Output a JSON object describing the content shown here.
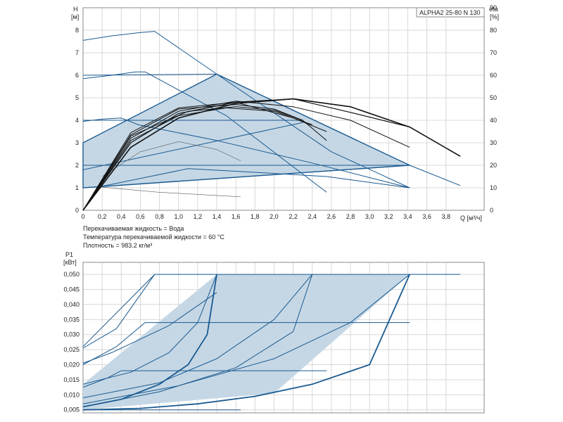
{
  "colors": {
    "region_fill": "#c5d7e5",
    "region_stroke": "#1a5a90",
    "curve_black": "#111111",
    "grid": "#d8d8d8"
  },
  "info": {
    "model": "ALPHA2 25-80 N 130",
    "liquid": "Перекачиваемая жидкость = Вода",
    "temperature": "Температура перекачиваемой жидкости = 60 °C",
    "density": "Плотность = 983.2 кг/м³"
  },
  "chart_data": [
    {
      "type": "line",
      "name": "head",
      "ylabel": "H",
      "ylabel_unit": "[м]",
      "y2label": "eta",
      "y2label_unit": "[%]",
      "xlabel": "Q [м³/ч]",
      "xlim": [
        0,
        4.2
      ],
      "ylim": [
        0,
        9
      ],
      "y2lim": [
        0,
        90
      ],
      "grid": true,
      "x_ticks": [
        "0",
        "0,2",
        "0,4",
        "0,6",
        "0,8",
        "1,0",
        "1,2",
        "1,4",
        "1,6",
        "1,8",
        "2,0",
        "2,2",
        "2,4",
        "2,6",
        "2,8",
        "3,0",
        "3,2",
        "3,4",
        "3,6",
        "3,8"
      ],
      "y_ticks": [
        "0",
        "1",
        "2",
        "3",
        "4",
        "5",
        "6",
        "7",
        "8"
      ],
      "y2_ticks": [
        "0",
        "10",
        "20",
        "30",
        "40",
        "50",
        "60",
        "70",
        "80",
        "90"
      ],
      "region": [
        [
          0,
          1.0
        ],
        [
          0,
          3.0
        ],
        [
          1.4,
          6.05
        ],
        [
          3.42,
          2.0
        ],
        [
          0.18,
          1.05
        ]
      ],
      "curves": [
        {
          "color": "blue",
          "width": 1,
          "points": [
            [
              0,
              7.55
            ],
            [
              0.3,
              7.75
            ],
            [
              0.6,
              7.9
            ],
            [
              0.75,
              7.95
            ],
            [
              1.4,
              6.05
            ],
            [
              2.6,
              2.6
            ],
            [
              3.42,
              1.0
            ]
          ]
        },
        {
          "color": "blue",
          "width": 1,
          "points": [
            [
              0,
              5.85
            ],
            [
              0.3,
              6.0
            ],
            [
              0.55,
              6.15
            ],
            [
              0.65,
              6.15
            ],
            [
              1.5,
              4.2
            ],
            [
              2.55,
              0.8
            ]
          ]
        },
        {
          "color": "blue",
          "width": 1,
          "points": [
            [
              0,
              3.95
            ],
            [
              0.2,
              4.05
            ],
            [
              0.4,
              4.1
            ],
            [
              0.58,
              3.8
            ],
            [
              1.4,
              3.1
            ],
            [
              2.4,
              2.1
            ],
            [
              3.42,
              1.0
            ]
          ]
        },
        {
          "color": "blue",
          "width": 1,
          "points": [
            [
              0,
              6.0
            ],
            [
              1.4,
              6.05
            ]
          ]
        },
        {
          "color": "blue",
          "width": 1,
          "points": [
            [
              0,
              4.0
            ],
            [
              2.3,
              4.0
            ]
          ]
        },
        {
          "color": "blue",
          "width": 1,
          "points": [
            [
              0,
              1.8
            ],
            [
              2.3,
              3.9
            ]
          ]
        },
        {
          "color": "blue",
          "width": 1,
          "points": [
            [
              0,
              2.0
            ],
            [
              3.42,
              2.0
            ]
          ]
        },
        {
          "color": "blue",
          "width": 1,
          "points": [
            [
              0,
              1.0
            ],
            [
              3.42,
              2.0
            ],
            [
              3.95,
              1.1
            ]
          ]
        },
        {
          "color": "blue",
          "width": 1,
          "points": [
            [
              0.18,
              1.05
            ],
            [
              1.1,
              1.85
            ],
            [
              1.75,
              1.7
            ],
            [
              2.55,
              1.5
            ],
            [
              3.42,
              1.0
            ]
          ]
        },
        {
          "color": "thin",
          "width": 0.6,
          "points": [
            [
              0.15,
              1.05
            ],
            [
              0.8,
              0.8
            ],
            [
              1.65,
              0.6
            ]
          ]
        },
        {
          "color": "thin",
          "width": 0.6,
          "points": [
            [
              0.2,
              1.5
            ],
            [
              0.6,
              2.6
            ],
            [
              1.0,
              3.05
            ],
            [
              1.4,
              2.7
            ],
            [
              1.65,
              2.2
            ]
          ]
        },
        {
          "color": "black",
          "width": 1.6,
          "points": [
            [
              0,
              0
            ],
            [
              0.5,
              2.8
            ],
            [
              1.0,
              4.1
            ],
            [
              1.6,
              4.75
            ],
            [
              2.2,
              4.95
            ],
            [
              2.8,
              4.6
            ],
            [
              3.42,
              3.7
            ],
            [
              3.95,
              2.4
            ]
          ]
        },
        {
          "color": "black",
          "width": 1.2,
          "points": [
            [
              0,
              0
            ],
            [
              0.5,
              3.0
            ],
            [
              1.0,
              4.3
            ],
            [
              1.6,
              4.8
            ],
            [
              2.2,
              4.95
            ],
            [
              2.8,
              4.35
            ],
            [
              3.42,
              3.7
            ]
          ]
        },
        {
          "color": "black",
          "width": 1.0,
          "points": [
            [
              0,
              0
            ],
            [
              0.5,
              3.2
            ],
            [
              1.0,
              4.4
            ],
            [
              1.6,
              4.85
            ],
            [
              2.2,
              4.6
            ],
            [
              2.8,
              4.0
            ],
            [
              3.42,
              2.8
            ]
          ]
        },
        {
          "color": "black",
          "width": 1.0,
          "points": [
            [
              0,
              0
            ],
            [
              0.5,
              3.35
            ],
            [
              1.0,
              4.5
            ],
            [
              1.6,
              4.7
            ],
            [
              2.0,
              4.5
            ],
            [
              2.3,
              4.0
            ],
            [
              2.55,
              3.1
            ]
          ]
        },
        {
          "color": "black",
          "width": 1.0,
          "points": [
            [
              0,
              0
            ],
            [
              0.5,
              3.45
            ],
            [
              1.0,
              4.55
            ],
            [
              1.6,
              4.8
            ],
            [
              2.2,
              4.1
            ],
            [
              2.55,
              3.5
            ]
          ]
        },
        {
          "color": "black",
          "width": 1.0,
          "points": [
            [
              0,
              0
            ],
            [
              0.5,
              3.1
            ],
            [
              1.0,
              4.2
            ],
            [
              1.5,
              4.55
            ],
            [
              2.0,
              4.4
            ],
            [
              2.4,
              3.8
            ]
          ]
        },
        {
          "color": "black",
          "width": 1.0,
          "points": [
            [
              0,
              0
            ],
            [
              0.5,
              3.3
            ],
            [
              1.1,
              4.4
            ],
            [
              1.6,
              4.6
            ],
            [
              2.0,
              4.45
            ],
            [
              2.3,
              4.0
            ]
          ]
        }
      ]
    },
    {
      "type": "line",
      "name": "power",
      "ylabel": "P1",
      "ylabel_unit": "[кВт]",
      "xlim": [
        0,
        4.2
      ],
      "ylim": [
        0.004,
        0.054
      ],
      "grid": true,
      "y_ticks": [
        "0,005",
        "0,010",
        "0,015",
        "0,020",
        "0,025",
        "0,030",
        "0,035",
        "0,040",
        "0,045",
        "0,050"
      ],
      "y_tick_values": [
        0.005,
        0.01,
        0.015,
        0.02,
        0.025,
        0.03,
        0.035,
        0.04,
        0.045,
        0.05
      ],
      "region": [
        [
          0,
          0.006
        ],
        [
          0,
          0.0135
        ],
        [
          1.4,
          0.05
        ],
        [
          3.42,
          0.05
        ],
        [
          2.0,
          0.0105
        ],
        [
          0,
          0.005
        ]
      ],
      "curves": [
        {
          "color": "blue",
          "width": 1.8,
          "points": [
            [
              0,
              0.005
            ],
            [
              0.6,
              0.0055
            ],
            [
              1.2,
              0.007
            ],
            [
              1.8,
              0.0095
            ],
            [
              2.4,
              0.0135
            ],
            [
              3.0,
              0.02
            ],
            [
              3.42,
              0.05
            ]
          ]
        },
        {
          "color": "blue",
          "width": 1.8,
          "points": [
            [
              0,
              0.006
            ],
            [
              0.4,
              0.0085
            ],
            [
              0.8,
              0.0135
            ],
            [
              1.1,
              0.02
            ],
            [
              1.3,
              0.03
            ],
            [
              1.4,
              0.05
            ]
          ]
        },
        {
          "color": "blue",
          "width": 1,
          "points": [
            [
              0,
              0.0135
            ],
            [
              0.5,
              0.0175
            ],
            [
              0.9,
              0.024
            ],
            [
              1.2,
              0.034
            ],
            [
              1.4,
              0.05
            ]
          ]
        },
        {
          "color": "blue",
          "width": 1,
          "points": [
            [
              0,
              0.006
            ],
            [
              0.8,
              0.011
            ],
            [
              1.6,
              0.019
            ],
            [
              2.2,
              0.031
            ],
            [
              2.4,
              0.05
            ]
          ]
        },
        {
          "color": "blue",
          "width": 1,
          "points": [
            [
              0,
              0.009
            ],
            [
              0.8,
              0.014
            ],
            [
              1.4,
              0.022
            ],
            [
              2.0,
              0.035
            ],
            [
              2.4,
              0.05
            ]
          ]
        },
        {
          "color": "blue",
          "width": 1,
          "points": [
            [
              0,
              0.007
            ],
            [
              1.0,
              0.013
            ],
            [
              2.0,
              0.022
            ],
            [
              2.8,
              0.034
            ],
            [
              3.42,
              0.05
            ]
          ]
        },
        {
          "color": "blue",
          "width": 1,
          "points": [
            [
              0,
              0.026
            ],
            [
              0.75,
              0.05
            ],
            [
              3.95,
              0.05
            ]
          ]
        },
        {
          "color": "blue",
          "width": 1,
          "points": [
            [
              0,
              0.02
            ],
            [
              0.35,
              0.026
            ],
            [
              0.65,
              0.034
            ],
            [
              3.42,
              0.034
            ]
          ]
        },
        {
          "color": "blue",
          "width": 1,
          "points": [
            [
              0,
              0.0125
            ],
            [
              0.25,
              0.0155
            ],
            [
              0.4,
              0.018
            ],
            [
              2.55,
              0.018
            ]
          ]
        },
        {
          "color": "blue",
          "width": 1,
          "points": [
            [
              0,
              0.0205
            ],
            [
              0.3,
              0.024
            ],
            [
              0.9,
              0.033
            ],
            [
              1.4,
              0.044
            ]
          ]
        },
        {
          "color": "blue",
          "width": 1,
          "points": [
            [
              0,
              0.0255
            ],
            [
              0.35,
              0.032
            ],
            [
              0.75,
              0.05
            ]
          ]
        },
        {
          "color": "blue",
          "width": 1,
          "points": [
            [
              0,
              0.005
            ],
            [
              1.65,
              0.005
            ]
          ]
        }
      ]
    }
  ]
}
